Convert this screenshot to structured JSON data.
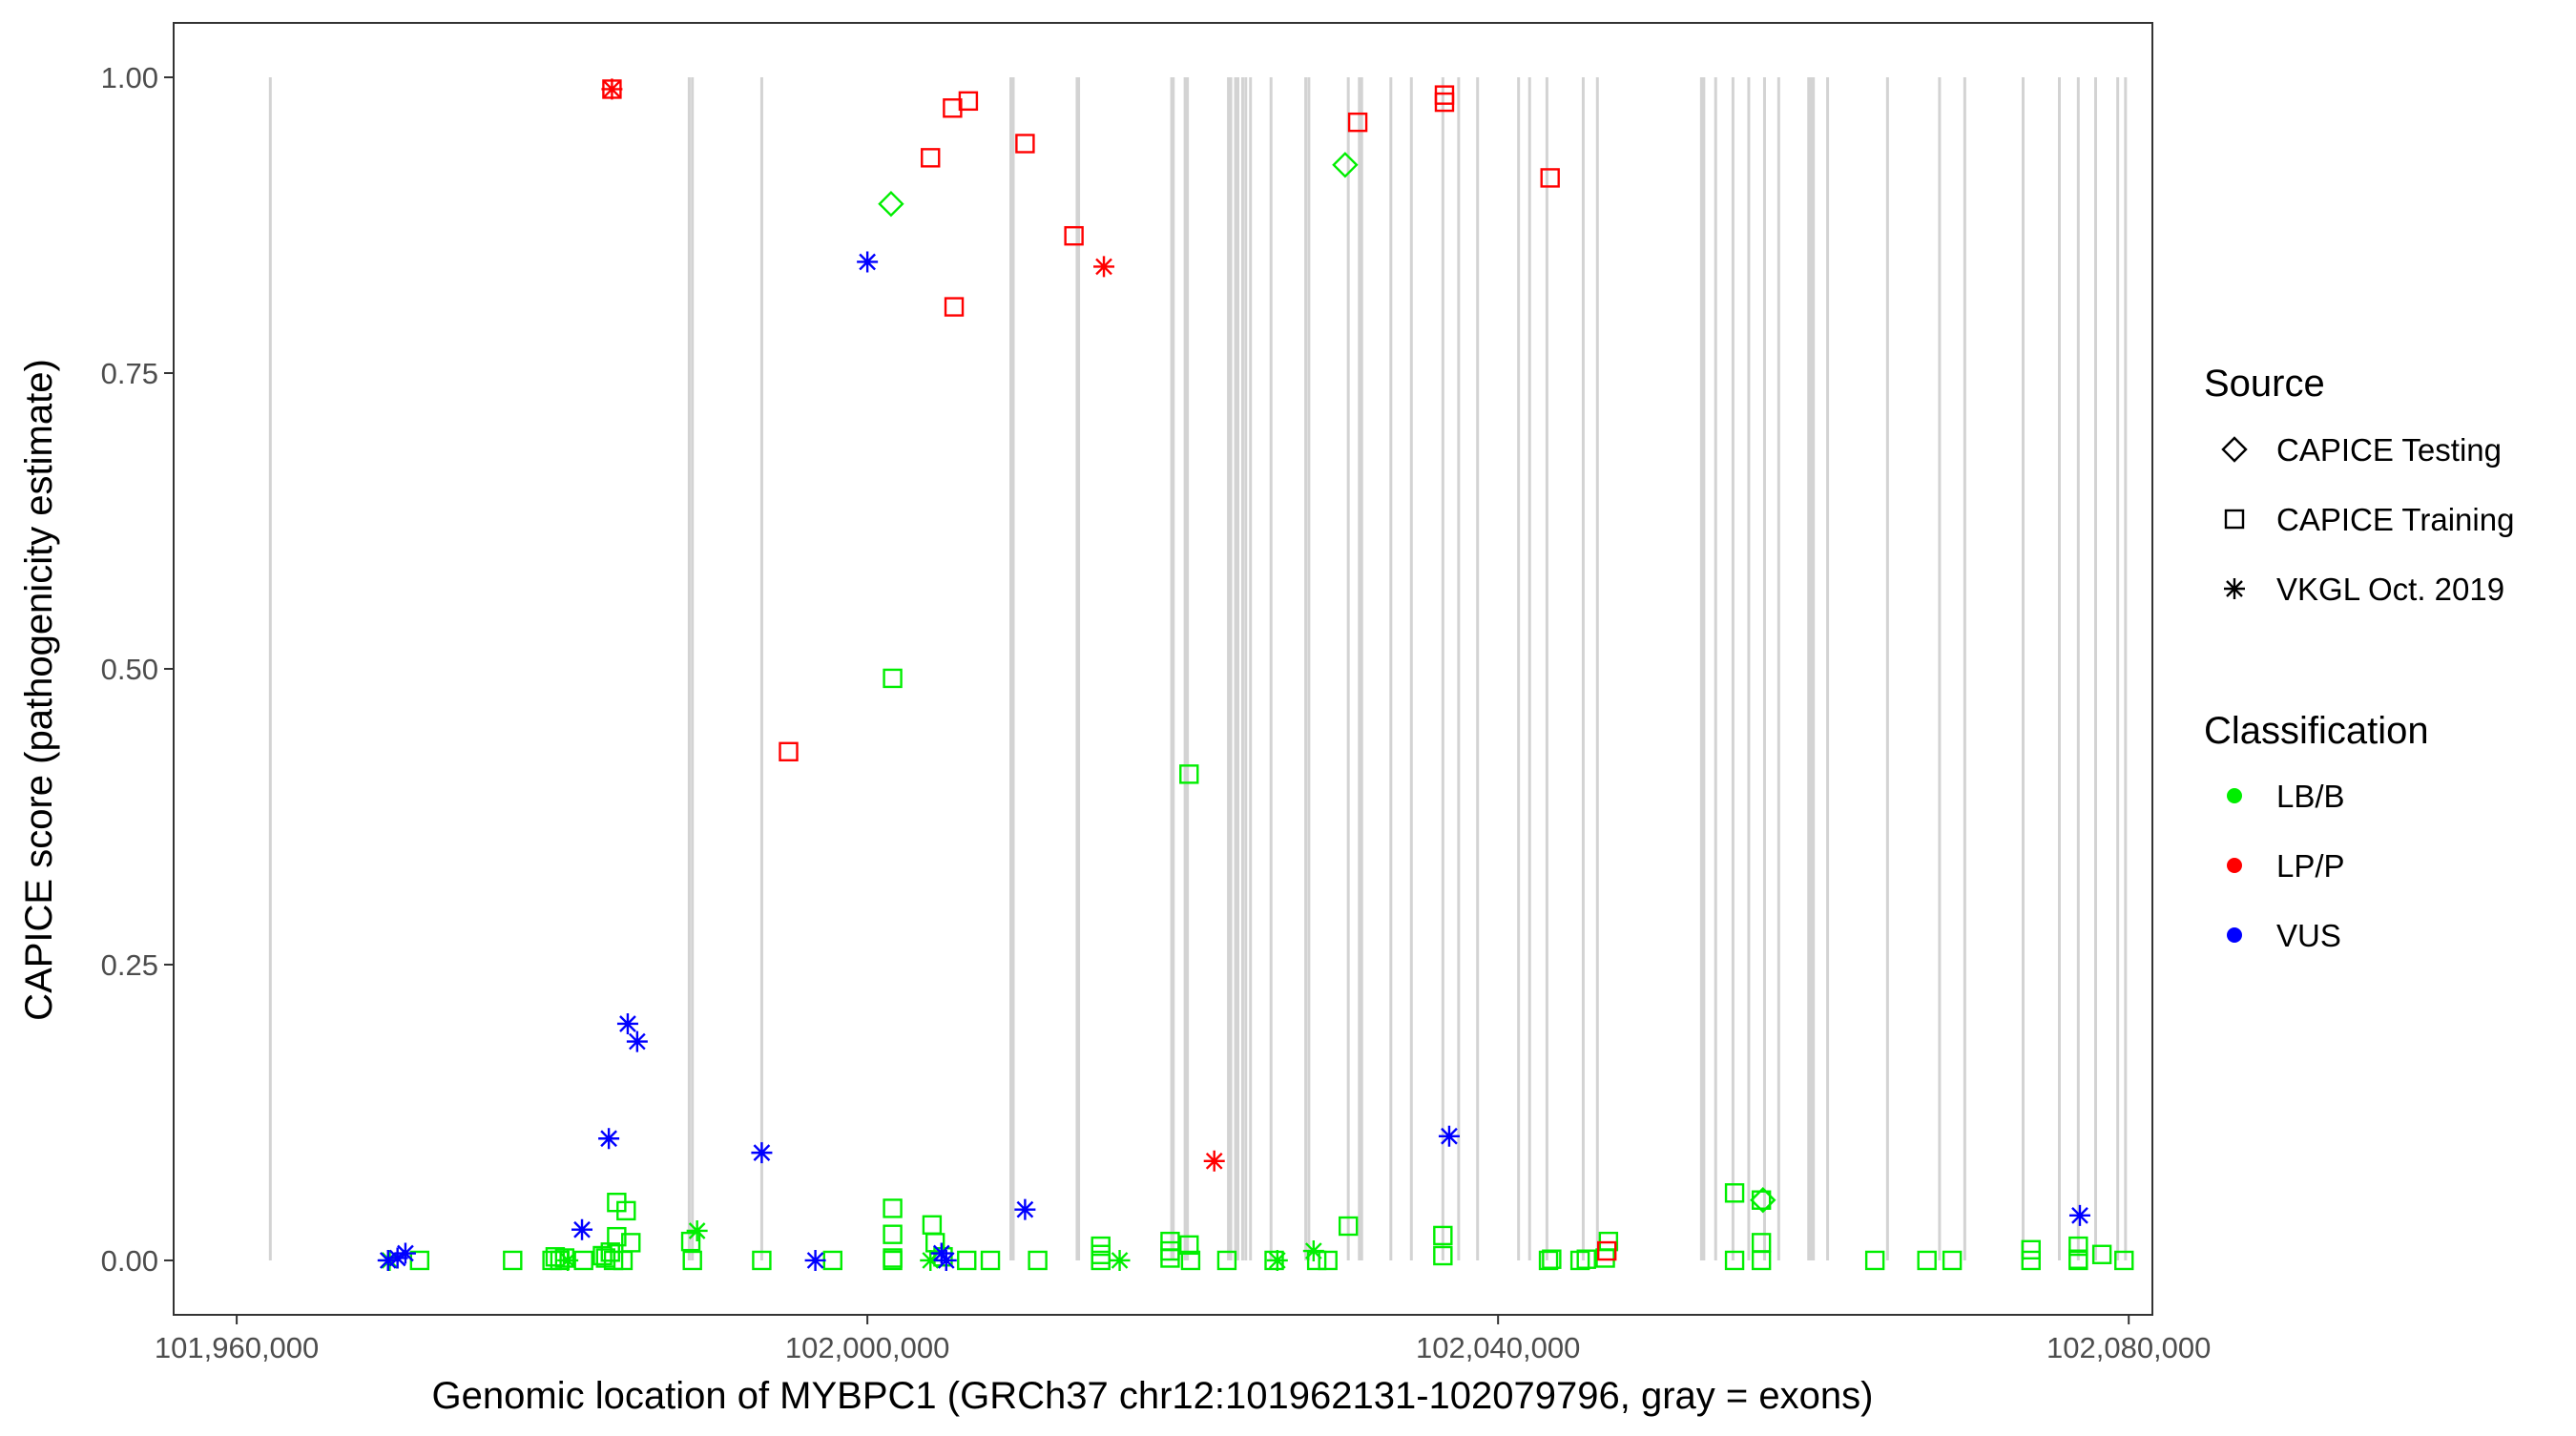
{
  "chart_data": {
    "type": "scatter",
    "title": "",
    "xlabel": "Genomic location of MYBPC1 (GRCh37 chr12:101962131-102079796, gray = exons)",
    "ylabel": "CAPICE score (pathogenicity estimate)",
    "xlim": [
      101956000,
      102081500
    ],
    "ylim": [
      -0.046,
      1.046
    ],
    "x_ticks": [
      101960000,
      102000000,
      102040000,
      102080000
    ],
    "x_tick_labels": [
      "101,960,000",
      "102,000,000",
      "102,040,000",
      "102,080,000"
    ],
    "y_ticks": [
      0,
      0.25,
      0.5,
      0.75,
      1.0
    ],
    "y_tick_labels": [
      "0.00",
      "0.25",
      "0.50",
      "0.75",
      "1.00"
    ],
    "grid": false,
    "exon_color": "#d3d3d3",
    "exons": [
      101962131,
      101988700,
      101988900,
      101993300,
      102009100,
      102009250,
      102013300,
      102013400,
      102019300,
      102019400,
      102020150,
      102020300,
      102022900,
      102023050,
      102023350,
      102023500,
      102023800,
      102024000,
      102024300,
      102025600,
      102027800,
      102028000,
      102030500,
      102031200,
      102031350,
      102033200,
      102034500,
      102036500,
      102037500,
      102038700,
      102041300,
      102042000,
      102043100,
      102045400,
      102046300,
      102052900,
      102053050,
      102053800,
      102054900,
      102055900,
      102056900,
      102057800,
      102059700,
      102059850,
      102060000,
      102060900,
      102064700,
      102068000,
      102069600,
      102073300,
      102075600,
      102076800,
      102077900,
      102079300,
      102079796
    ],
    "legend": {
      "placement": "right",
      "source_title": "Source",
      "source_entries": [
        {
          "label": "CAPICE Testing",
          "shape": "diamond"
        },
        {
          "label": "CAPICE Training",
          "shape": "square"
        },
        {
          "label": "VKGL Oct. 2019",
          "shape": "asterisk"
        }
      ],
      "class_title": "Classification",
      "class_entries": [
        {
          "label": "LB/B",
          "color": "#00ee00"
        },
        {
          "label": "LP/P",
          "color": "#ff0000"
        },
        {
          "label": "VUS",
          "color": "#0000ff"
        }
      ]
    },
    "series": [
      {
        "name": "LB/B",
        "color": "#00ee00",
        "points": [
          {
            "x": 101969700,
            "y": 0.0,
            "shape": "asterisk"
          },
          {
            "x": 101971600,
            "y": 0.0,
            "shape": "square"
          },
          {
            "x": 101977500,
            "y": 0.0,
            "shape": "square"
          },
          {
            "x": 101980000,
            "y": 0.0,
            "shape": "square"
          },
          {
            "x": 101980200,
            "y": 0.003,
            "shape": "square"
          },
          {
            "x": 101980500,
            "y": 0.0,
            "shape": "square"
          },
          {
            "x": 101980800,
            "y": 0.002,
            "shape": "square"
          },
          {
            "x": 101981000,
            "y": 0.0,
            "shape": "asterisk"
          },
          {
            "x": 101982000,
            "y": 0.0,
            "shape": "square"
          },
          {
            "x": 101983200,
            "y": 0.004,
            "shape": "square"
          },
          {
            "x": 101983400,
            "y": 0.002,
            "shape": "square"
          },
          {
            "x": 101983700,
            "y": 0.007,
            "shape": "square"
          },
          {
            "x": 101983900,
            "y": 0.0,
            "shape": "square"
          },
          {
            "x": 101984100,
            "y": 0.02,
            "shape": "square"
          },
          {
            "x": 101984100,
            "y": 0.049,
            "shape": "square"
          },
          {
            "x": 101984500,
            "y": 0.0,
            "shape": "square"
          },
          {
            "x": 101984700,
            "y": 0.042,
            "shape": "square"
          },
          {
            "x": 101985000,
            "y": 0.015,
            "shape": "square"
          },
          {
            "x": 101988800,
            "y": 0.016,
            "shape": "square"
          },
          {
            "x": 101988900,
            "y": 0.0,
            "shape": "square"
          },
          {
            "x": 101989200,
            "y": 0.025,
            "shape": "asterisk"
          },
          {
            "x": 101993300,
            "y": 0.0,
            "shape": "square"
          },
          {
            "x": 101997800,
            "y": 0.0,
            "shape": "square"
          },
          {
            "x": 102001600,
            "y": 0.044,
            "shape": "square"
          },
          {
            "x": 102001600,
            "y": 0.022,
            "shape": "square"
          },
          {
            "x": 102001600,
            "y": 0.002,
            "shape": "square"
          },
          {
            "x": 102001600,
            "y": 0.0,
            "shape": "square"
          },
          {
            "x": 102001600,
            "y": 0.492,
            "shape": "square"
          },
          {
            "x": 102001500,
            "y": 0.893,
            "shape": "diamond"
          },
          {
            "x": 102004100,
            "y": 0.03,
            "shape": "square"
          },
          {
            "x": 102004300,
            "y": 0.015,
            "shape": "square"
          },
          {
            "x": 102004000,
            "y": 0.0,
            "shape": "asterisk"
          },
          {
            "x": 102004800,
            "y": 0.003,
            "shape": "square"
          },
          {
            "x": 102006300,
            "y": 0.0,
            "shape": "square"
          },
          {
            "x": 102007800,
            "y": 0.0,
            "shape": "square"
          },
          {
            "x": 102010800,
            "y": 0.0,
            "shape": "square"
          },
          {
            "x": 102014800,
            "y": 0.012,
            "shape": "square"
          },
          {
            "x": 102014800,
            "y": 0.005,
            "shape": "square"
          },
          {
            "x": 102014800,
            "y": 0.0,
            "shape": "square"
          },
          {
            "x": 102016000,
            "y": 0.0,
            "shape": "asterisk"
          },
          {
            "x": 102019200,
            "y": 0.016,
            "shape": "square"
          },
          {
            "x": 102019200,
            "y": 0.008,
            "shape": "square"
          },
          {
            "x": 102019200,
            "y": 0.002,
            "shape": "square"
          },
          {
            "x": 102020400,
            "y": 0.013,
            "shape": "square"
          },
          {
            "x": 102020500,
            "y": 0.0,
            "shape": "square"
          },
          {
            "x": 102020400,
            "y": 0.411,
            "shape": "square"
          },
          {
            "x": 102022800,
            "y": 0.0,
            "shape": "square"
          },
          {
            "x": 102025800,
            "y": 0.0,
            "shape": "square"
          },
          {
            "x": 102026000,
            "y": 0.0,
            "shape": "asterisk"
          },
          {
            "x": 102028300,
            "y": 0.008,
            "shape": "asterisk"
          },
          {
            "x": 102028500,
            "y": 0.0,
            "shape": "square"
          },
          {
            "x": 102029200,
            "y": 0.0,
            "shape": "square"
          },
          {
            "x": 102030500,
            "y": 0.029,
            "shape": "square"
          },
          {
            "x": 102030300,
            "y": 0.926,
            "shape": "diamond"
          },
          {
            "x": 102036500,
            "y": 0.021,
            "shape": "square"
          },
          {
            "x": 102036500,
            "y": 0.004,
            "shape": "square"
          },
          {
            "x": 102043200,
            "y": 0.0,
            "shape": "square"
          },
          {
            "x": 102043400,
            "y": 0.001,
            "shape": "square"
          },
          {
            "x": 102045200,
            "y": 0.0,
            "shape": "square"
          },
          {
            "x": 102045600,
            "y": 0.001,
            "shape": "square"
          },
          {
            "x": 102046800,
            "y": 0.002,
            "shape": "square"
          },
          {
            "x": 102047000,
            "y": 0.016,
            "shape": "square"
          },
          {
            "x": 102055000,
            "y": 0.057,
            "shape": "square"
          },
          {
            "x": 102055000,
            "y": 0.0,
            "shape": "square"
          },
          {
            "x": 102056700,
            "y": 0.051,
            "shape": "square"
          },
          {
            "x": 102056800,
            "y": 0.051,
            "shape": "diamond"
          },
          {
            "x": 102056700,
            "y": 0.015,
            "shape": "square"
          },
          {
            "x": 102056700,
            "y": 0.0,
            "shape": "square"
          },
          {
            "x": 102063900,
            "y": 0.0,
            "shape": "square"
          },
          {
            "x": 102067200,
            "y": 0.0,
            "shape": "square"
          },
          {
            "x": 102068800,
            "y": 0.0,
            "shape": "square"
          },
          {
            "x": 102073800,
            "y": 0.009,
            "shape": "square"
          },
          {
            "x": 102073800,
            "y": 0.0,
            "shape": "square"
          },
          {
            "x": 102076800,
            "y": 0.012,
            "shape": "square"
          },
          {
            "x": 102076800,
            "y": 0.001,
            "shape": "square"
          },
          {
            "x": 102076800,
            "y": 0.0,
            "shape": "square"
          },
          {
            "x": 102078300,
            "y": 0.005,
            "shape": "square"
          },
          {
            "x": 102079700,
            "y": 0.0,
            "shape": "square"
          }
        ]
      },
      {
        "name": "LP/P",
        "color": "#ff0000",
        "points": [
          {
            "x": 101983800,
            "y": 0.99,
            "shape": "square"
          },
          {
            "x": 101983800,
            "y": 0.99,
            "shape": "asterisk"
          },
          {
            "x": 101995000,
            "y": 0.43,
            "shape": "square"
          },
          {
            "x": 102004000,
            "y": 0.932,
            "shape": "square"
          },
          {
            "x": 102005400,
            "y": 0.974,
            "shape": "square"
          },
          {
            "x": 102006400,
            "y": 0.98,
            "shape": "square"
          },
          {
            "x": 102005500,
            "y": 0.806,
            "shape": "square"
          },
          {
            "x": 102010000,
            "y": 0.944,
            "shape": "square"
          },
          {
            "x": 102013100,
            "y": 0.866,
            "shape": "square"
          },
          {
            "x": 102015000,
            "y": 0.84,
            "shape": "asterisk"
          },
          {
            "x": 102022000,
            "y": 0.084,
            "shape": "asterisk"
          },
          {
            "x": 102031100,
            "y": 0.962,
            "shape": "square"
          },
          {
            "x": 102036600,
            "y": 0.985,
            "shape": "square"
          },
          {
            "x": 102036600,
            "y": 0.979,
            "shape": "square"
          },
          {
            "x": 102043300,
            "y": 0.915,
            "shape": "square"
          },
          {
            "x": 102046900,
            "y": 0.008,
            "shape": "square"
          }
        ]
      },
      {
        "name": "VUS",
        "color": "#0000ff",
        "points": [
          {
            "x": 101969600,
            "y": 0.0,
            "shape": "asterisk"
          },
          {
            "x": 101970200,
            "y": 0.002,
            "shape": "asterisk"
          },
          {
            "x": 101970700,
            "y": 0.006,
            "shape": "asterisk"
          },
          {
            "x": 101981900,
            "y": 0.026,
            "shape": "asterisk"
          },
          {
            "x": 101983600,
            "y": 0.103,
            "shape": "asterisk"
          },
          {
            "x": 101984800,
            "y": 0.2,
            "shape": "asterisk"
          },
          {
            "x": 101985400,
            "y": 0.185,
            "shape": "asterisk"
          },
          {
            "x": 101993300,
            "y": 0.091,
            "shape": "asterisk"
          },
          {
            "x": 101996700,
            "y": 0.0,
            "shape": "asterisk"
          },
          {
            "x": 102000000,
            "y": 0.844,
            "shape": "asterisk"
          },
          {
            "x": 102004700,
            "y": 0.006,
            "shape": "asterisk"
          },
          {
            "x": 102005000,
            "y": 0.0,
            "shape": "asterisk"
          },
          {
            "x": 102010000,
            "y": 0.043,
            "shape": "asterisk"
          },
          {
            "x": 102036900,
            "y": 0.105,
            "shape": "asterisk"
          },
          {
            "x": 102076900,
            "y": 0.038,
            "shape": "asterisk"
          }
        ]
      }
    ]
  }
}
